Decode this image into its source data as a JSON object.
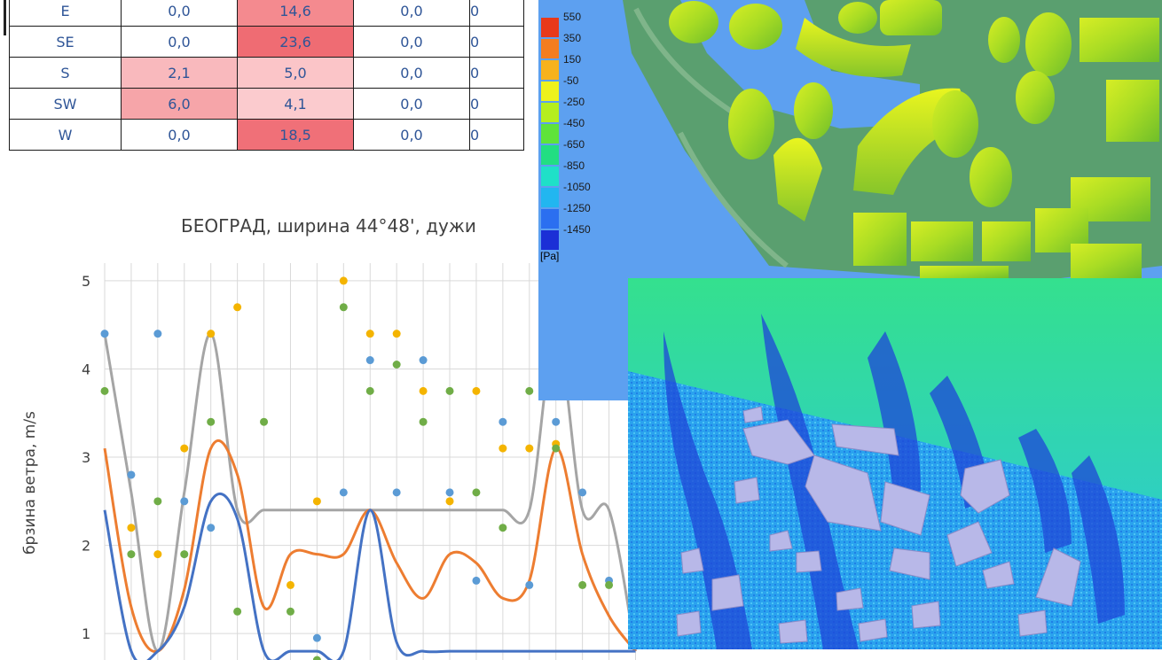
{
  "table": {
    "rows": [
      {
        "dir": "E",
        "v1": "0,0",
        "v2": "14,6",
        "v3": "0,0",
        "v4": "0"
      },
      {
        "dir": "SE",
        "v1": "0,0",
        "v2": "23,6",
        "v3": "0,0",
        "v4": "0"
      },
      {
        "dir": "S",
        "v1": "2,1",
        "v2": "5,0",
        "v3": "0,0",
        "v4": "0"
      },
      {
        "dir": "SW",
        "v1": "6,0",
        "v2": "4,1",
        "v3": "0,0",
        "v4": "0"
      },
      {
        "dir": "W",
        "v1": "0,0",
        "v2": "18,5",
        "v3": "0,0",
        "v4": "0"
      }
    ],
    "colors": {
      "strong": "#f07076",
      "mid": "#f6a5a8",
      "light": "#fbc7c9",
      "text": "#2f5597"
    }
  },
  "chart": {
    "title": "БЕОГРАД, ширина 44°48', дужи",
    "ylabel": "брзина ветра, m/s",
    "yticks": [
      "1",
      "2",
      "3",
      "4",
      "5"
    ]
  },
  "chart_data": {
    "type": "line",
    "title": "БЕОГРАД, ширина 44°48', дужи",
    "ylabel": "брзина ветра, m/s",
    "ylim": [
      0.6,
      5.2
    ],
    "grid": true,
    "x": [
      0,
      1,
      2,
      3,
      4,
      5,
      6,
      7,
      8,
      9,
      10,
      11,
      12,
      13,
      14,
      15,
      16,
      17,
      18,
      19,
      20
    ],
    "series": [
      {
        "color": "#a5a5a5",
        "values": [
          4.4,
          2.6,
          0.8,
          2.6,
          4.4,
          2.4,
          2.4,
          2.4,
          2.4,
          2.4,
          2.4,
          2.4,
          2.4,
          2.4,
          2.4,
          2.4,
          2.4,
          4.4,
          2.4,
          2.4,
          0.8
        ]
      },
      {
        "color": "#ed7d31",
        "values": [
          3.1,
          1.3,
          0.8,
          1.5,
          3.1,
          2.8,
          1.3,
          1.9,
          1.9,
          1.9,
          2.4,
          1.8,
          1.4,
          1.9,
          1.8,
          1.4,
          1.6,
          3.1,
          1.9,
          1.2,
          0.8
        ]
      },
      {
        "color": "#4472c4",
        "values": [
          2.4,
          0.8,
          0.8,
          1.3,
          2.5,
          2.3,
          0.8,
          0.8,
          0.8,
          0.8,
          2.4,
          0.9,
          0.8,
          0.8,
          0.8,
          0.8,
          0.8,
          0.8,
          0.8,
          0.8,
          0.8
        ]
      }
    ],
    "points": [
      {
        "color": "#5b9bd5",
        "x": [
          0,
          1,
          2,
          3,
          4,
          8,
          9,
          10,
          11,
          12,
          13,
          14,
          15,
          16,
          17,
          18,
          19,
          20
        ],
        "y": [
          4.4,
          2.8,
          4.4,
          2.5,
          2.2,
          0.95,
          2.6,
          4.1,
          2.6,
          4.1,
          2.6,
          1.6,
          3.4,
          1.55,
          3.4,
          2.6,
          1.6,
          3.1
        ]
      },
      {
        "color": "#f4b400",
        "x": [
          1,
          2,
          3,
          4,
          5,
          7,
          8,
          9,
          10,
          11,
          12,
          13,
          14,
          15,
          16,
          17
        ],
        "y": [
          2.2,
          1.9,
          3.1,
          4.4,
          4.7,
          1.55,
          2.5,
          5.0,
          4.4,
          4.4,
          3.75,
          2.5,
          3.75,
          3.1,
          3.1,
          3.15
        ]
      },
      {
        "color": "#70ad47",
        "x": [
          0,
          1,
          2,
          3,
          4,
          5,
          6,
          7,
          8,
          9,
          10,
          11,
          12,
          13,
          14,
          15,
          16,
          17,
          18,
          19,
          20
        ],
        "y": [
          3.75,
          1.9,
          2.5,
          1.9,
          3.4,
          1.25,
          3.4,
          1.25,
          0.7,
          4.7,
          3.75,
          4.05,
          3.4,
          3.75,
          2.6,
          2.2,
          3.75,
          3.1,
          1.55,
          1.55,
          2.5
        ]
      }
    ]
  },
  "pressure": {
    "unit": "[Pa]",
    "legend": [
      {
        "label": "550",
        "color": "#e8391a"
      },
      {
        "label": "350",
        "color": "#f47d1f"
      },
      {
        "label": "150",
        "color": "#f7b21d"
      },
      {
        "label": "-50",
        "color": "#eef21c"
      },
      {
        "label": "-250",
        "color": "#b5ee1e"
      },
      {
        "label": "-450",
        "color": "#5fe33a"
      },
      {
        "label": "-650",
        "color": "#22de82"
      },
      {
        "label": "-850",
        "color": "#1fe0c8"
      },
      {
        "label": "-1050",
        "color": "#22b6f0"
      },
      {
        "label": "-1250",
        "color": "#2b6ff0"
      },
      {
        "label": "-1450",
        "color": "#1b2fd6"
      }
    ]
  }
}
